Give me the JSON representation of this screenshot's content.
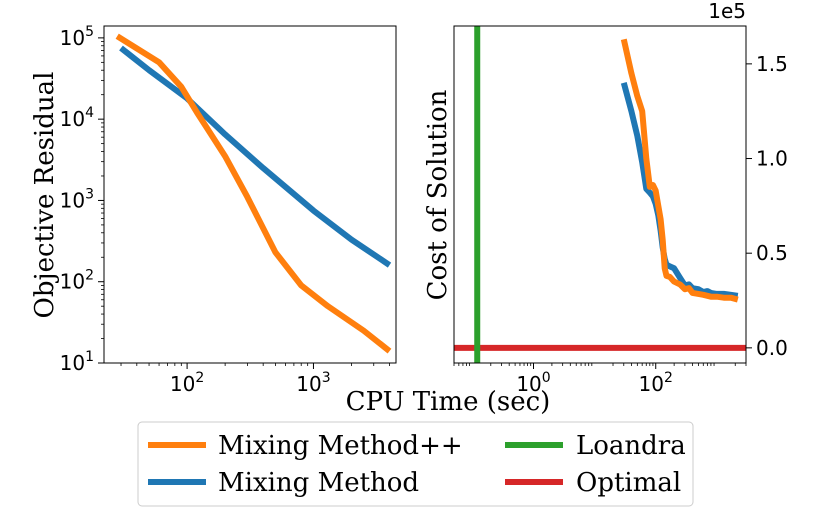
{
  "chart_data": [
    {
      "type": "line",
      "xscale": "log",
      "yscale": "log",
      "xlim": [
        22,
        4500
      ],
      "ylim": [
        10,
        140000
      ],
      "ylabel": "Objective Residual",
      "xticks": [
        {
          "value": 100,
          "base": "10",
          "exp": "2"
        },
        {
          "value": 1000,
          "base": "10",
          "exp": "3"
        }
      ],
      "yticks": [
        {
          "value": 10,
          "base": "10",
          "exp": "1"
        },
        {
          "value": 100,
          "base": "10",
          "exp": "2"
        },
        {
          "value": 1000,
          "base": "10",
          "exp": "3"
        },
        {
          "value": 10000,
          "base": "10",
          "exp": "4"
        },
        {
          "value": 100000,
          "base": "10",
          "exp": "5"
        }
      ],
      "series": [
        {
          "name": "Mixing Method",
          "color": "#1f77b4",
          "x": [
            30,
            50,
            100,
            200,
            400,
            1000,
            2000,
            4000
          ],
          "y": [
            75000,
            40000,
            18000,
            6500,
            2500,
            750,
            330,
            160
          ]
        },
        {
          "name": "Mixing Method++",
          "color": "#ff7f0e",
          "x": [
            28,
            60,
            90,
            120,
            200,
            300,
            500,
            800,
            1300,
            2500,
            4000
          ],
          "y": [
            105000,
            50000,
            25000,
            12000,
            3500,
            1100,
            230,
            90,
            50,
            25,
            14
          ]
        }
      ]
    },
    {
      "type": "line",
      "xscale": "log",
      "yscale": "linear",
      "xlim": [
        0.05,
        3000
      ],
      "ylim": [
        -8000,
        170000
      ],
      "ylabel": "Cost of Solution",
      "offset_text": "1e5",
      "xticks": [
        {
          "value": 1,
          "base": "10",
          "exp": "0"
        },
        {
          "value": 100,
          "base": "10",
          "exp": "2"
        }
      ],
      "yticks": [
        {
          "value": 0,
          "label": "0.0"
        },
        {
          "value": 50000,
          "label": "0.5"
        },
        {
          "value": 100000,
          "label": "1.0"
        },
        {
          "value": 150000,
          "label": "1.5"
        }
      ],
      "series": [
        {
          "name": "Mixing Method",
          "color": "#1f77b4",
          "x": [
            30,
            40,
            50,
            60,
            70,
            80,
            90,
            100,
            110,
            120,
            130,
            140,
            150,
            170,
            200,
            250,
            300,
            350,
            400,
            500,
            600,
            700,
            800,
            1000,
            1300,
            1700,
            2200
          ],
          "y": [
            140000,
            125000,
            112000,
            98000,
            84000,
            82000,
            80000,
            76000,
            70000,
            62000,
            53000,
            47000,
            44000,
            43000,
            42000,
            37000,
            33000,
            33500,
            31500,
            31000,
            29500,
            30000,
            29000,
            28500,
            28500,
            28000,
            27500
          ]
        },
        {
          "name": "Mixing Method++",
          "color": "#ff7f0e",
          "x": [
            30,
            40,
            50,
            60,
            70,
            80,
            90,
            100,
            110,
            120,
            130,
            140,
            150,
            170,
            200,
            250,
            300,
            350,
            400,
            500,
            600,
            700,
            800,
            1000,
            1300,
            1700,
            2200
          ],
          "y": [
            163000,
            145000,
            133000,
            125000,
            100000,
            85000,
            86000,
            83000,
            75000,
            68000,
            57000,
            42000,
            38000,
            37500,
            35000,
            33500,
            31000,
            31500,
            29000,
            28500,
            28000,
            27500,
            27000,
            27000,
            26500,
            26500,
            25500
          ]
        },
        {
          "name": "Loandra",
          "color": "#2ca02c",
          "orientation": "vertical",
          "x_value": 0.12
        },
        {
          "name": "Optimal",
          "color": "#d62728",
          "orientation": "horizontal",
          "y_value": 0
        }
      ]
    }
  ],
  "xlabel": "CPU Time (sec)",
  "legend": [
    {
      "name": "Mixing Method++",
      "color": "#ff7f0e"
    },
    {
      "name": "Mixing Method",
      "color": "#1f77b4"
    },
    {
      "name": "Loandra",
      "color": "#2ca02c"
    },
    {
      "name": "Optimal",
      "color": "#d62728"
    }
  ]
}
